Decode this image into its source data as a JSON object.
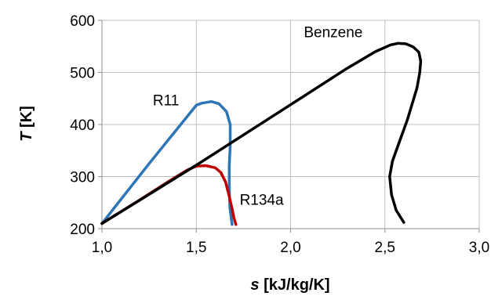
{
  "chart_data": {
    "type": "line",
    "xlabel": {
      "symbol": "s",
      "unit": " [kJ/kg/K]"
    },
    "ylabel": {
      "symbol": "T",
      "unit": " [K]"
    },
    "xlim": [
      1.0,
      3.0
    ],
    "ylim": [
      200,
      600
    ],
    "x_ticks": [
      1.0,
      1.5,
      2.0,
      2.5,
      3.0
    ],
    "x_tick_labels": [
      "1,0",
      "1,5",
      "2,0",
      "2,5",
      "3,0"
    ],
    "y_ticks": [
      200,
      300,
      400,
      500,
      600
    ],
    "y_tick_labels": [
      "200",
      "300",
      "400",
      "500",
      "600"
    ],
    "grid": true,
    "series": [
      {
        "name": "R11",
        "color": "#2e75b6",
        "points": [
          [
            1.0,
            210
          ],
          [
            1.25,
            325
          ],
          [
            1.5,
            437
          ],
          [
            1.53,
            441
          ],
          [
            1.58,
            444
          ],
          [
            1.62,
            440
          ],
          [
            1.66,
            425
          ],
          [
            1.68,
            400
          ],
          [
            1.68,
            360
          ],
          [
            1.675,
            320
          ],
          [
            1.675,
            280
          ],
          [
            1.678,
            240
          ],
          [
            1.69,
            208
          ]
        ]
      },
      {
        "name": "R134a",
        "color": "#c00000",
        "points": [
          [
            1.0,
            210
          ],
          [
            1.2,
            255
          ],
          [
            1.35,
            290
          ],
          [
            1.45,
            312
          ],
          [
            1.5,
            320
          ],
          [
            1.55,
            321
          ],
          [
            1.6,
            317
          ],
          [
            1.63,
            308
          ],
          [
            1.655,
            290
          ],
          [
            1.675,
            262
          ],
          [
            1.69,
            238
          ],
          [
            1.7,
            220
          ],
          [
            1.71,
            208
          ]
        ]
      },
      {
        "name": "Benzene",
        "color": "#000000",
        "points": [
          [
            1.0,
            210
          ],
          [
            1.5,
            322
          ],
          [
            2.0,
            438
          ],
          [
            2.3,
            508
          ],
          [
            2.45,
            540
          ],
          [
            2.53,
            553
          ],
          [
            2.57,
            556
          ],
          [
            2.61,
            555
          ],
          [
            2.65,
            549
          ],
          [
            2.68,
            539
          ],
          [
            2.69,
            522
          ],
          [
            2.685,
            500
          ],
          [
            2.67,
            470
          ],
          [
            2.62,
            410
          ],
          [
            2.58,
            370
          ],
          [
            2.54,
            330
          ],
          [
            2.525,
            300
          ],
          [
            2.535,
            265
          ],
          [
            2.56,
            235
          ],
          [
            2.6,
            212
          ]
        ]
      }
    ],
    "labels": [
      {
        "text": "R11",
        "x": 1.27,
        "y": 437
      },
      {
        "text": "R134a",
        "x": 1.73,
        "y": 246
      },
      {
        "text": "Benzene",
        "x": 2.07,
        "y": 568
      }
    ]
  }
}
